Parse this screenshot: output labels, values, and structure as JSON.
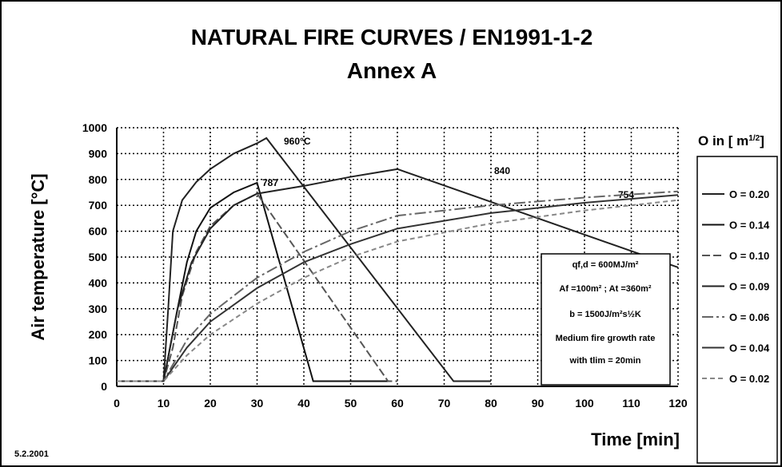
{
  "chart_data": {
    "type": "line",
    "title": "NATURAL FIRE CURVES / EN1991-1-2",
    "subtitle": "Annex A",
    "y_label": "Air temperature [°C]",
    "x_label": "Time [min]",
    "date": "5.2.2001",
    "legend_title": [
      "O in [ m",
      "1/2",
      "]"
    ],
    "annotations": [
      "960°C",
      "787",
      "840",
      "754"
    ],
    "info_box": [
      "qf,d = 600MJ/m²",
      "Af =100m² ; At =360m²",
      "b = 1500J/m²s½K",
      "Medium fire growth rate",
      "with tlim = 20min"
    ],
    "xlim": [
      0,
      120
    ],
    "xticks": [
      0,
      10,
      20,
      30,
      40,
      50,
      60,
      70,
      80,
      90,
      100,
      110,
      120
    ],
    "ylim": [
      0,
      1000
    ],
    "yticks": [
      0,
      100,
      200,
      300,
      400,
      500,
      600,
      700,
      800,
      900,
      1000
    ],
    "grid": true,
    "series": [
      {
        "name": "O = 0.20",
        "color": "#222222",
        "dash": "none",
        "x": [
          0,
          10,
          11,
          12,
          14,
          17,
          20,
          25,
          30,
          32,
          72,
          80
        ],
        "values": [
          20,
          20,
          300,
          600,
          720,
          790,
          840,
          900,
          940,
          960,
          20,
          20
        ]
      },
      {
        "name": "O = 0.14",
        "color": "#111111",
        "dash": "none",
        "x": [
          0,
          10,
          13,
          15,
          17,
          20,
          25,
          30,
          42,
          58
        ],
        "values": [
          20,
          20,
          300,
          480,
          600,
          690,
          750,
          787,
          20,
          20
        ]
      },
      {
        "name": "O = 0.10",
        "color": "#555555",
        "dash": "10 4",
        "x": [
          0,
          10,
          12,
          14,
          17,
          20,
          25,
          30,
          58,
          60
        ],
        "values": [
          20,
          20,
          150,
          350,
          520,
          620,
          700,
          745,
          20,
          20
        ]
      },
      {
        "name": "O = 0.09",
        "color": "#222222",
        "dash": "none",
        "x": [
          0,
          10,
          13,
          16,
          20,
          25,
          30,
          40,
          50,
          60,
          120
        ],
        "values": [
          20,
          20,
          300,
          480,
          610,
          700,
          745,
          775,
          810,
          840,
          460
        ]
      },
      {
        "name": "O = 0.06",
        "color": "#666666",
        "dash": "14 4 3 4",
        "x": [
          0,
          10,
          15,
          20,
          30,
          40,
          50,
          60,
          80,
          100,
          120
        ],
        "values": [
          20,
          20,
          180,
          280,
          420,
          520,
          600,
          660,
          700,
          730,
          754
        ]
      },
      {
        "name": "O = 0.04",
        "color": "#333333",
        "dash": "none",
        "x": [
          0,
          10,
          15,
          20,
          30,
          40,
          50,
          60,
          80,
          100,
          120
        ],
        "values": [
          20,
          20,
          150,
          250,
          380,
          480,
          550,
          610,
          670,
          710,
          740
        ]
      },
      {
        "name": "O = 0.02",
        "color": "#888888",
        "dash": "6 4",
        "x": [
          0,
          10,
          15,
          20,
          30,
          40,
          50,
          60,
          80,
          100,
          120
        ],
        "values": [
          20,
          20,
          120,
          200,
          320,
          420,
          500,
          560,
          630,
          680,
          720
        ]
      }
    ]
  }
}
